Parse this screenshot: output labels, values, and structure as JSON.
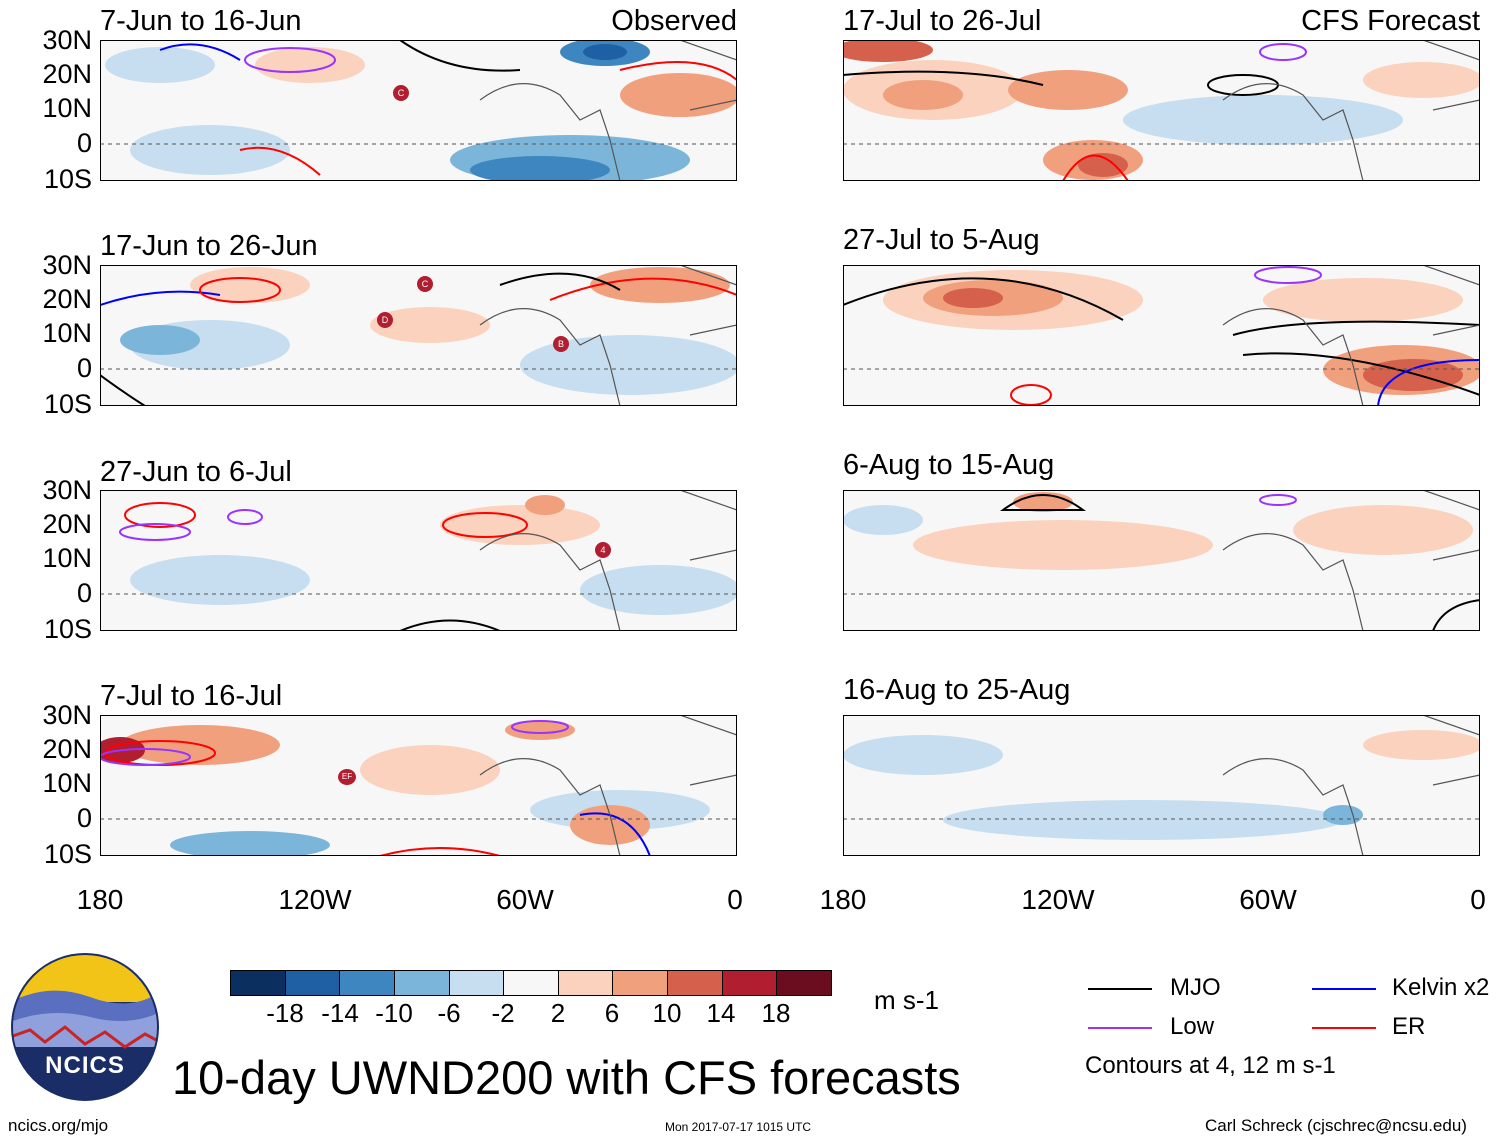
{
  "title": "10-day UWND200 with CFS forecasts",
  "footer": {
    "site": "ncics.org/mjo",
    "timestamp": "Mon 2017-07-17 1015 UTC",
    "credit": "Carl Schreck (cjschrec@ncsu.edu)"
  },
  "logo": {
    "text": "NCICS"
  },
  "columns": {
    "left_tag": "Observed",
    "right_tag": "CFS Forecast"
  },
  "panels": [
    {
      "title": "7-Jun to 16-Jun"
    },
    {
      "title": "17-Jun to 26-Jun"
    },
    {
      "title": "27-Jun to 6-Jul"
    },
    {
      "title": "7-Jul to 16-Jul"
    },
    {
      "title": "17-Jul to 26-Jul"
    },
    {
      "title": "27-Jul to 5-Aug"
    },
    {
      "title": "6-Aug to 15-Aug"
    },
    {
      "title": "16-Aug to 25-Aug"
    }
  ],
  "lat_labels": [
    "30N",
    "20N",
    "10N",
    "0",
    "10S"
  ],
  "lon_labels": [
    "180",
    "120W",
    "60W",
    "0"
  ],
  "colorbar": {
    "units": "m s-1",
    "labels": [
      "-18",
      "-14",
      "-10",
      "-6",
      "-2",
      "2",
      "6",
      "10",
      "14",
      "18"
    ],
    "colors": [
      "#0b2f5e",
      "#1f5fa3",
      "#3d86c0",
      "#7bb6da",
      "#c6def0",
      "#f7f7f7",
      "#fbd2bd",
      "#f1a07e",
      "#d5604c",
      "#b01e2f",
      "#6b0d1f"
    ]
  },
  "legend": {
    "items": [
      {
        "label": "MJO",
        "color": "#000000"
      },
      {
        "label": "Kelvin x2",
        "color": "#0000ff"
      },
      {
        "label": "Low",
        "color": "#9933ff"
      },
      {
        "label": "ER",
        "color": "#ff0000"
      }
    ],
    "note": "Contours at 4, 12 m s-1"
  },
  "storms": [
    {
      "panel": 0,
      "label": "C"
    },
    {
      "panel": 1,
      "label": "C"
    },
    {
      "panel": 1,
      "label": "D"
    },
    {
      "panel": 1,
      "label": "B"
    },
    {
      "panel": 2,
      "label": "4"
    },
    {
      "panel": 3,
      "label": "EF"
    }
  ]
}
